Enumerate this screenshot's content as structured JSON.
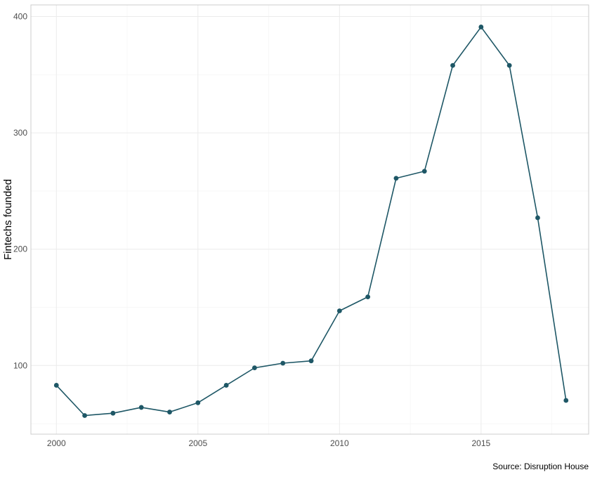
{
  "chart_data": {
    "type": "line",
    "title": "",
    "xlabel": "",
    "ylabel": "Fintechs founded",
    "caption": "Source: Disruption House",
    "x": [
      2000,
      2001,
      2002,
      2003,
      2004,
      2005,
      2006,
      2007,
      2008,
      2009,
      2010,
      2011,
      2012,
      2013,
      2014,
      2015,
      2016,
      2017,
      2018
    ],
    "series": [
      {
        "values": [
          83,
          57,
          59,
          64,
          60,
          68,
          83,
          98,
          102,
          104,
          147,
          159,
          261,
          267,
          358,
          391,
          358,
          227,
          70
        ]
      }
    ],
    "xticks": [
      "2000",
      "2005",
      "2010",
      "2015"
    ],
    "yticks": [
      "100",
      "200",
      "300",
      "400"
    ],
    "xlim": [
      1999.1,
      2018.8
    ],
    "ylim": [
      41,
      410
    ],
    "grid": true,
    "legend": "none",
    "colors": {
      "series": "#1e5766",
      "grid_major": "#ebebeb",
      "grid_minor": "#f5f5f5",
      "panel_border": "#cccccc"
    }
  }
}
